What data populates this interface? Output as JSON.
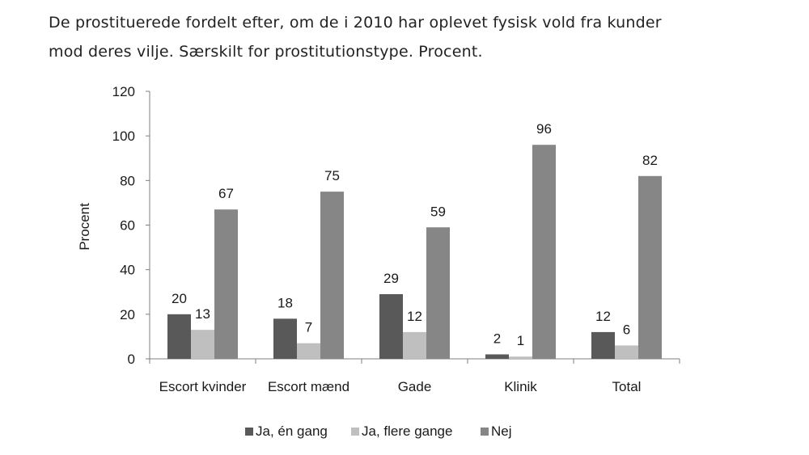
{
  "chart_data": {
    "type": "bar",
    "title_lines": [
      "De prostituerede fordelt efter, om de i 2010 har oplevet fysisk vold fra kunder",
      "mod deres vilje. Særskilt for prostitutionstype. Procent."
    ],
    "ylabel": "Procent",
    "xlabel": "",
    "ylim": [
      0,
      120
    ],
    "yticks": [
      0,
      20,
      40,
      60,
      80,
      100,
      120
    ],
    "categories": [
      "Escort kvinder",
      "Escort mænd",
      "Gade",
      "Klinik",
      "Total"
    ],
    "series": [
      {
        "name": "Ja, én gang",
        "color": "#595959",
        "values": [
          20,
          18,
          29,
          2,
          12
        ]
      },
      {
        "name": "Ja, flere gange",
        "color": "#bfbfbf",
        "values": [
          13,
          7,
          12,
          1,
          6
        ]
      },
      {
        "name": "Nej",
        "color": "#868686",
        "values": [
          67,
          75,
          59,
          96,
          82
        ]
      }
    ],
    "legend": "bottom",
    "grid": false
  }
}
